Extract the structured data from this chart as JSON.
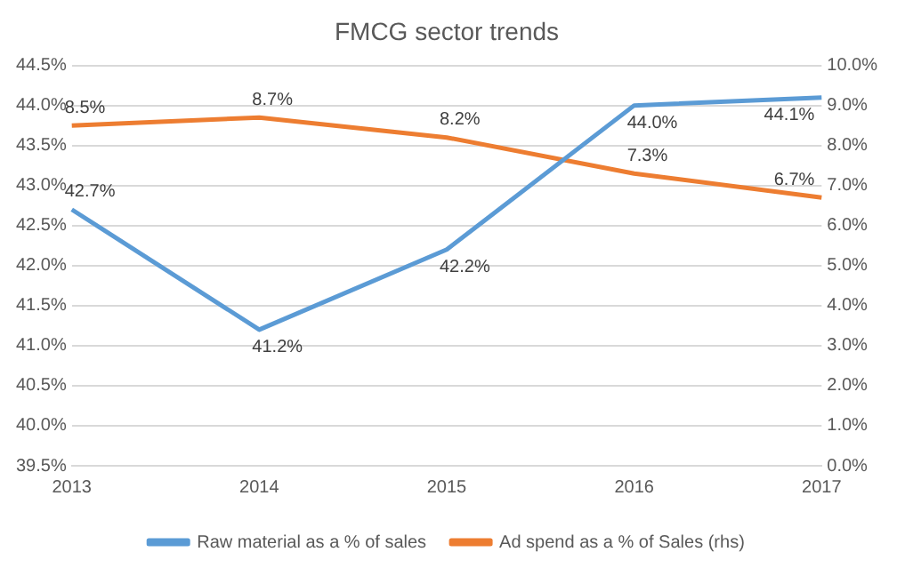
{
  "chart_data": {
    "type": "line",
    "title": "FMCG sector trends",
    "categories": [
      "2013",
      "2014",
      "2015",
      "2016",
      "2017"
    ],
    "series": [
      {
        "name": "Raw material as a % of sales",
        "color": "#5b9bd5",
        "values": [
          42.7,
          41.2,
          42.2,
          44.0,
          44.1
        ],
        "value_labels": [
          "42.7%",
          "41.2%",
          "42.2%",
          "44.0%",
          "44.1%"
        ]
      },
      {
        "name": "Ad spend as a % of Sales (rhs)",
        "color": "#ed7d31",
        "axis": "y2",
        "values": [
          8.5,
          8.7,
          8.2,
          7.3,
          6.7
        ],
        "value_labels": [
          "8.5%",
          "8.7%",
          "8.2%",
          "7.3%",
          "6.7%"
        ]
      }
    ],
    "ylim": [
      39.5,
      44.5
    ],
    "yticks": [
      {
        "value": 39.5,
        "label": "39.5%"
      },
      {
        "value": 40,
        "label": "40.0%"
      },
      {
        "value": 40.5,
        "label": "40.5%"
      },
      {
        "value": 41,
        "label": "41.0%"
      },
      {
        "value": 41.5,
        "label": "41.5%"
      },
      {
        "value": 42,
        "label": "42.0%"
      },
      {
        "value": 42.5,
        "label": "42.5%"
      },
      {
        "value": 43,
        "label": "43.0%"
      },
      {
        "value": 43.5,
        "label": "43.5%"
      },
      {
        "value": 44,
        "label": "44.0%"
      },
      {
        "value": 44.5,
        "label": "44.5%"
      }
    ],
    "y2lim": [
      0,
      10
    ],
    "y2ticks": [
      {
        "value": 0,
        "label": "0.0%"
      },
      {
        "value": 1,
        "label": "1.0%"
      },
      {
        "value": 2,
        "label": "2.0%"
      },
      {
        "value": 3,
        "label": "3.0%"
      },
      {
        "value": 4,
        "label": "4.0%"
      },
      {
        "value": 5,
        "label": "5.0%"
      },
      {
        "value": 6,
        "label": "6.0%"
      },
      {
        "value": 7,
        "label": "7.0%"
      },
      {
        "value": 8,
        "label": "8.0%"
      },
      {
        "value": 9,
        "label": "9.0%"
      },
      {
        "value": 10,
        "label": "10.0%"
      }
    ],
    "grid": "y",
    "legend": "bottom",
    "marker": "none",
    "line_style": "solid"
  }
}
